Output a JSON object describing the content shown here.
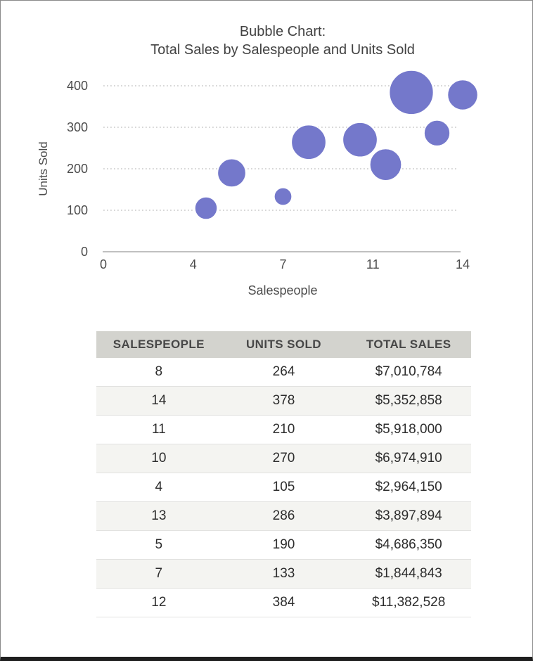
{
  "title": {
    "line1": "Bubble Chart:",
    "line2": "Total Sales by Salespeople and Units Sold"
  },
  "chart_data": {
    "type": "bubble",
    "title": "Bubble Chart: Total Sales by Salespeople and Units Sold",
    "xlabel": "Salespeople",
    "ylabel": "Units Sold",
    "xlim": [
      0,
      14
    ],
    "ylim": [
      0,
      400
    ],
    "x_tick_labels": [
      "0",
      "4",
      "7",
      "11",
      "14"
    ],
    "y_ticks": [
      0,
      100,
      200,
      300,
      400
    ],
    "grid": "horizontal-dotted",
    "legend": "none",
    "bubble_color": "#7478CB",
    "size_encodes": "total_sales",
    "points": [
      {
        "salespeople": 8,
        "units_sold": 264,
        "total_sales": 7010784
      },
      {
        "salespeople": 14,
        "units_sold": 378,
        "total_sales": 5352858
      },
      {
        "salespeople": 11,
        "units_sold": 210,
        "total_sales": 5918000
      },
      {
        "salespeople": 10,
        "units_sold": 270,
        "total_sales": 6974910
      },
      {
        "salespeople": 4,
        "units_sold": 105,
        "total_sales": 2964150
      },
      {
        "salespeople": 13,
        "units_sold": 286,
        "total_sales": 3897894
      },
      {
        "salespeople": 5,
        "units_sold": 190,
        "total_sales": 4686350
      },
      {
        "salespeople": 7,
        "units_sold": 133,
        "total_sales": 1844843
      },
      {
        "salespeople": 12,
        "units_sold": 384,
        "total_sales": 11382528
      }
    ]
  },
  "table": {
    "columns": [
      "SALESPEOPLE",
      "UNITS SOLD",
      "TOTAL SALES"
    ],
    "rows": [
      [
        "8",
        "264",
        "$7,010,784"
      ],
      [
        "14",
        "378",
        "$5,352,858"
      ],
      [
        "11",
        "210",
        "$5,918,000"
      ],
      [
        "10",
        "270",
        "$6,974,910"
      ],
      [
        "4",
        "105",
        "$2,964,150"
      ],
      [
        "13",
        "286",
        "$3,897,894"
      ],
      [
        "5",
        "190",
        "$4,686,350"
      ],
      [
        "7",
        "133",
        "$1,844,843"
      ],
      [
        "12",
        "384",
        "$11,382,528"
      ]
    ]
  },
  "colors": {
    "bubble": "#7478CB",
    "grid_line": "#bfbfbf",
    "axis_line": "#9b9b9b",
    "axis_text": "#4c4c4c",
    "title_text": "#424242",
    "table_header_bg": "#d3d3ce",
    "table_stripe_bg": "#f4f4f1",
    "frame_bottom": "#1e1e1e"
  }
}
